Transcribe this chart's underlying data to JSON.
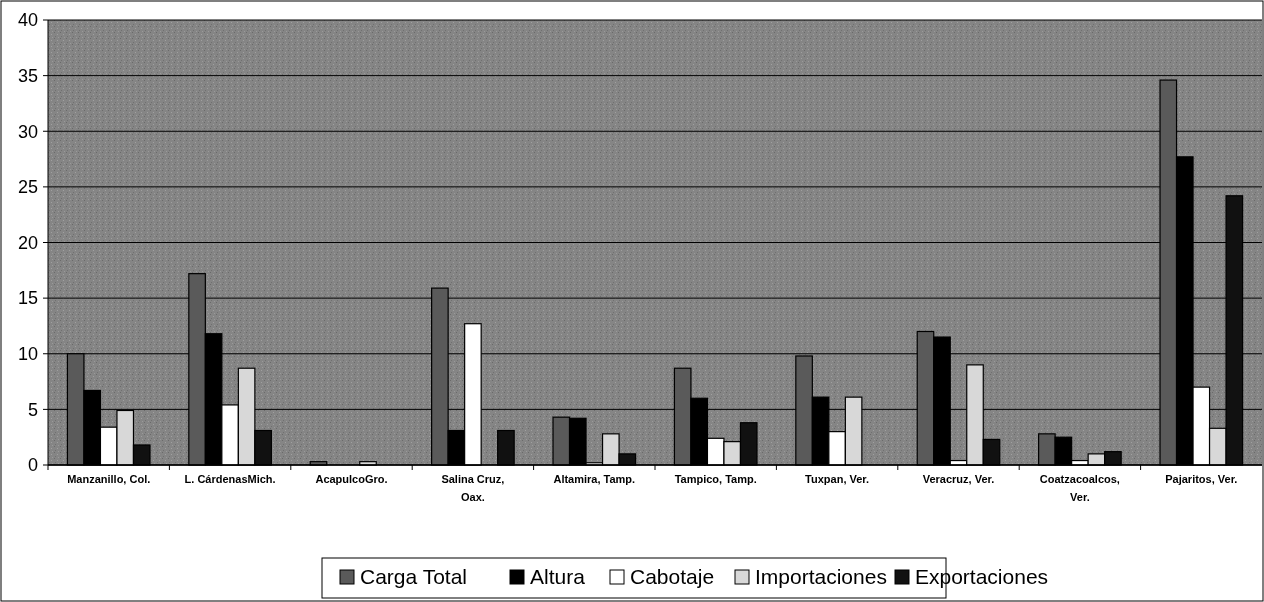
{
  "chart_data": {
    "type": "bar",
    "categories": [
      "Manzanillo, Col.",
      "L. CárdenasMich.",
      "AcapulcoGro.",
      "Salina Cruz, Oax.",
      "Altamira, Tamp.",
      "Tampico, Tamp.",
      "Tuxpan, Ver.",
      "Veracruz, Ver.",
      "Coatzacoalcos, Ver.",
      "Pajaritos, Ver."
    ],
    "series": [
      {
        "name": "Carga Total",
        "color": "#5a5a5a",
        "values": [
          10,
          17.2,
          0.3,
          15.9,
          4.3,
          8.7,
          9.8,
          12.0,
          2.8,
          34.6
        ]
      },
      {
        "name": "Altura",
        "color": "#000000",
        "values": [
          6.7,
          11.8,
          0,
          3.1,
          4.2,
          6.0,
          6.1,
          11.5,
          2.5,
          27.7
        ]
      },
      {
        "name": "Cabotaje",
        "color": "#ffffff",
        "values": [
          3.4,
          5.4,
          0,
          12.7,
          0.2,
          2.4,
          3.0,
          0.4,
          0.4,
          7.0
        ]
      },
      {
        "name": "Importaciones",
        "color": "#d8d8d8",
        "values": [
          4.9,
          8.7,
          0.3,
          0,
          2.8,
          2.1,
          6.1,
          9.0,
          1.0,
          3.3
        ]
      },
      {
        "name": "Exportaciones",
        "color": "#111111",
        "values": [
          1.8,
          3.1,
          0,
          3.1,
          1.0,
          3.8,
          0,
          2.3,
          1.2,
          24.2
        ]
      }
    ],
    "ylim": [
      0,
      40
    ],
    "yticks": [
      0,
      5,
      10,
      15,
      20,
      25,
      30,
      35,
      40
    ],
    "grid": "y",
    "legend": "bottom"
  }
}
